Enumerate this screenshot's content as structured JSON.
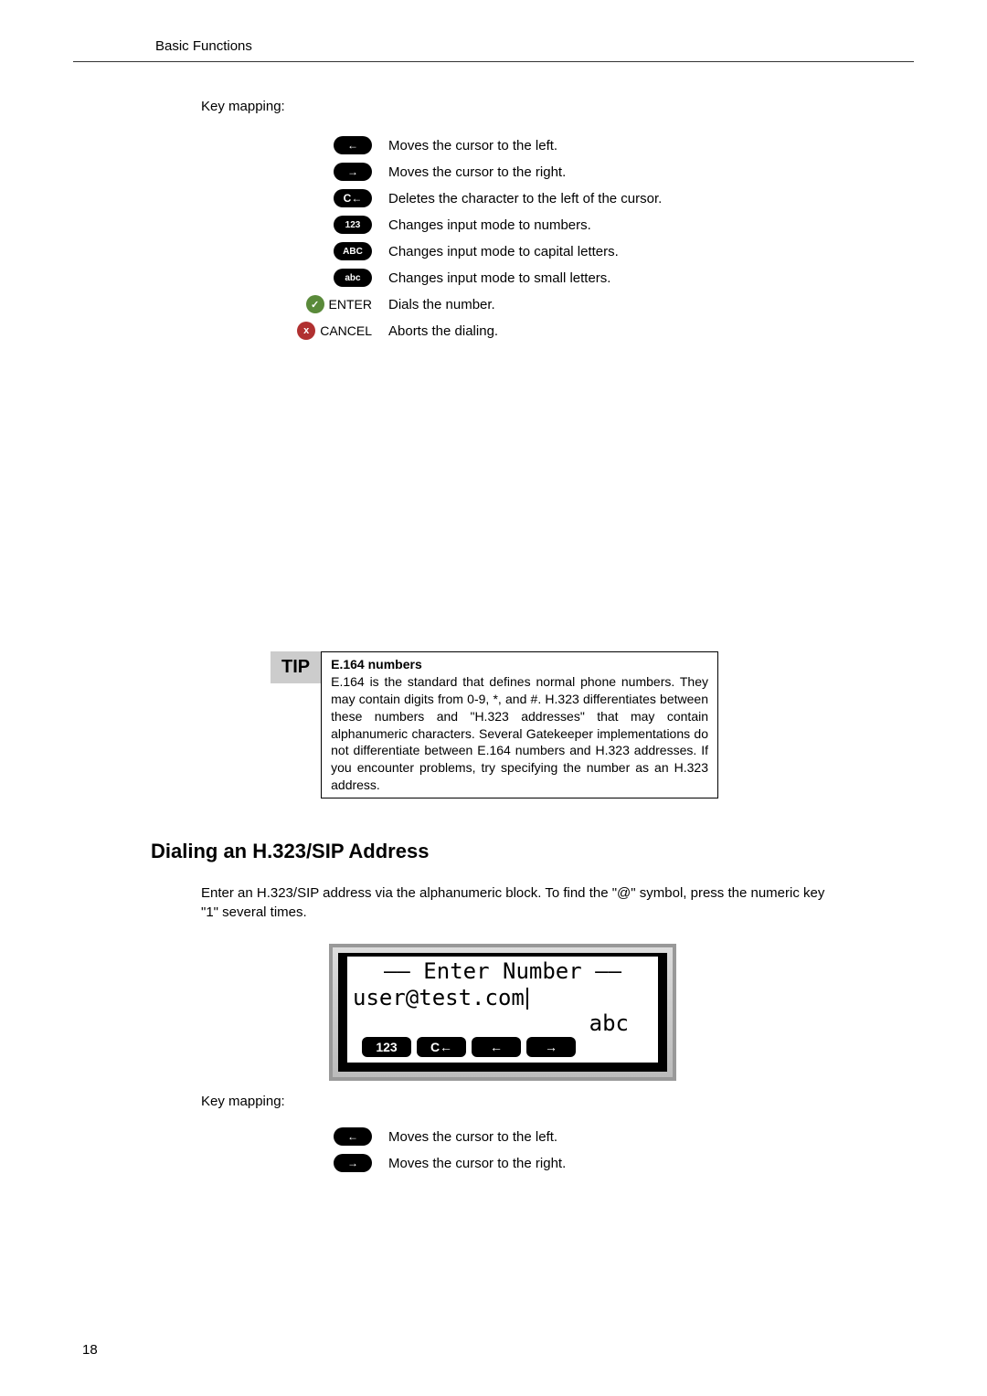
{
  "header": "Basic Functions",
  "key_mapping_label": "Key mapping:",
  "keys1": [
    {
      "icon": "←",
      "desc": "Moves the cursor to the left."
    },
    {
      "icon": "→",
      "desc": "Moves the cursor to the right."
    },
    {
      "icon": "C←",
      "desc": "Deletes the character to the left of the cursor."
    },
    {
      "icon": "123",
      "desc": "Changes input mode to numbers."
    },
    {
      "icon": "ABC",
      "desc": "Changes input mode to capital letters."
    },
    {
      "icon": "abc",
      "desc": "Changes input mode to small letters."
    }
  ],
  "enter_row": {
    "symbol": "✓",
    "label": "ENTER",
    "desc": "Dials the number."
  },
  "cancel_row": {
    "symbol": "x",
    "label": "CANCEL",
    "desc": "Aborts the dialing."
  },
  "tip": {
    "label": "TIP",
    "title": "E.164 numbers",
    "body": "E.164 is the standard that defines normal phone numbers. They may contain digits from 0-9, *, and #. H.323 differentiates between these numbers and \"H.323 addresses\" that may contain alphanumeric characters. Several Gatekeeper implementations do not differentiate between E.164 numbers and H.323 addresses. If you encounter problems, try specifying the number as an H.323 address."
  },
  "section_heading": "Dialing an H.323/SIP Address",
  "section_para": "Enter an H.323/SIP address via the alphanumeric block.  To find the \"@\" symbol, press the numeric key \"1\" several times.",
  "lcd": {
    "title": "—— Enter Number ——",
    "value": "user@test.com",
    "mode": "abc",
    "btn1": "123",
    "btn2": "C←",
    "btn3": "←",
    "btn4": "→"
  },
  "key_mapping_label2": "Key mapping:",
  "keys2": [
    {
      "icon": "←",
      "desc": "Moves the cursor to the left."
    },
    {
      "icon": "→",
      "desc": "Moves the cursor to the right."
    }
  ],
  "page_number": "18"
}
